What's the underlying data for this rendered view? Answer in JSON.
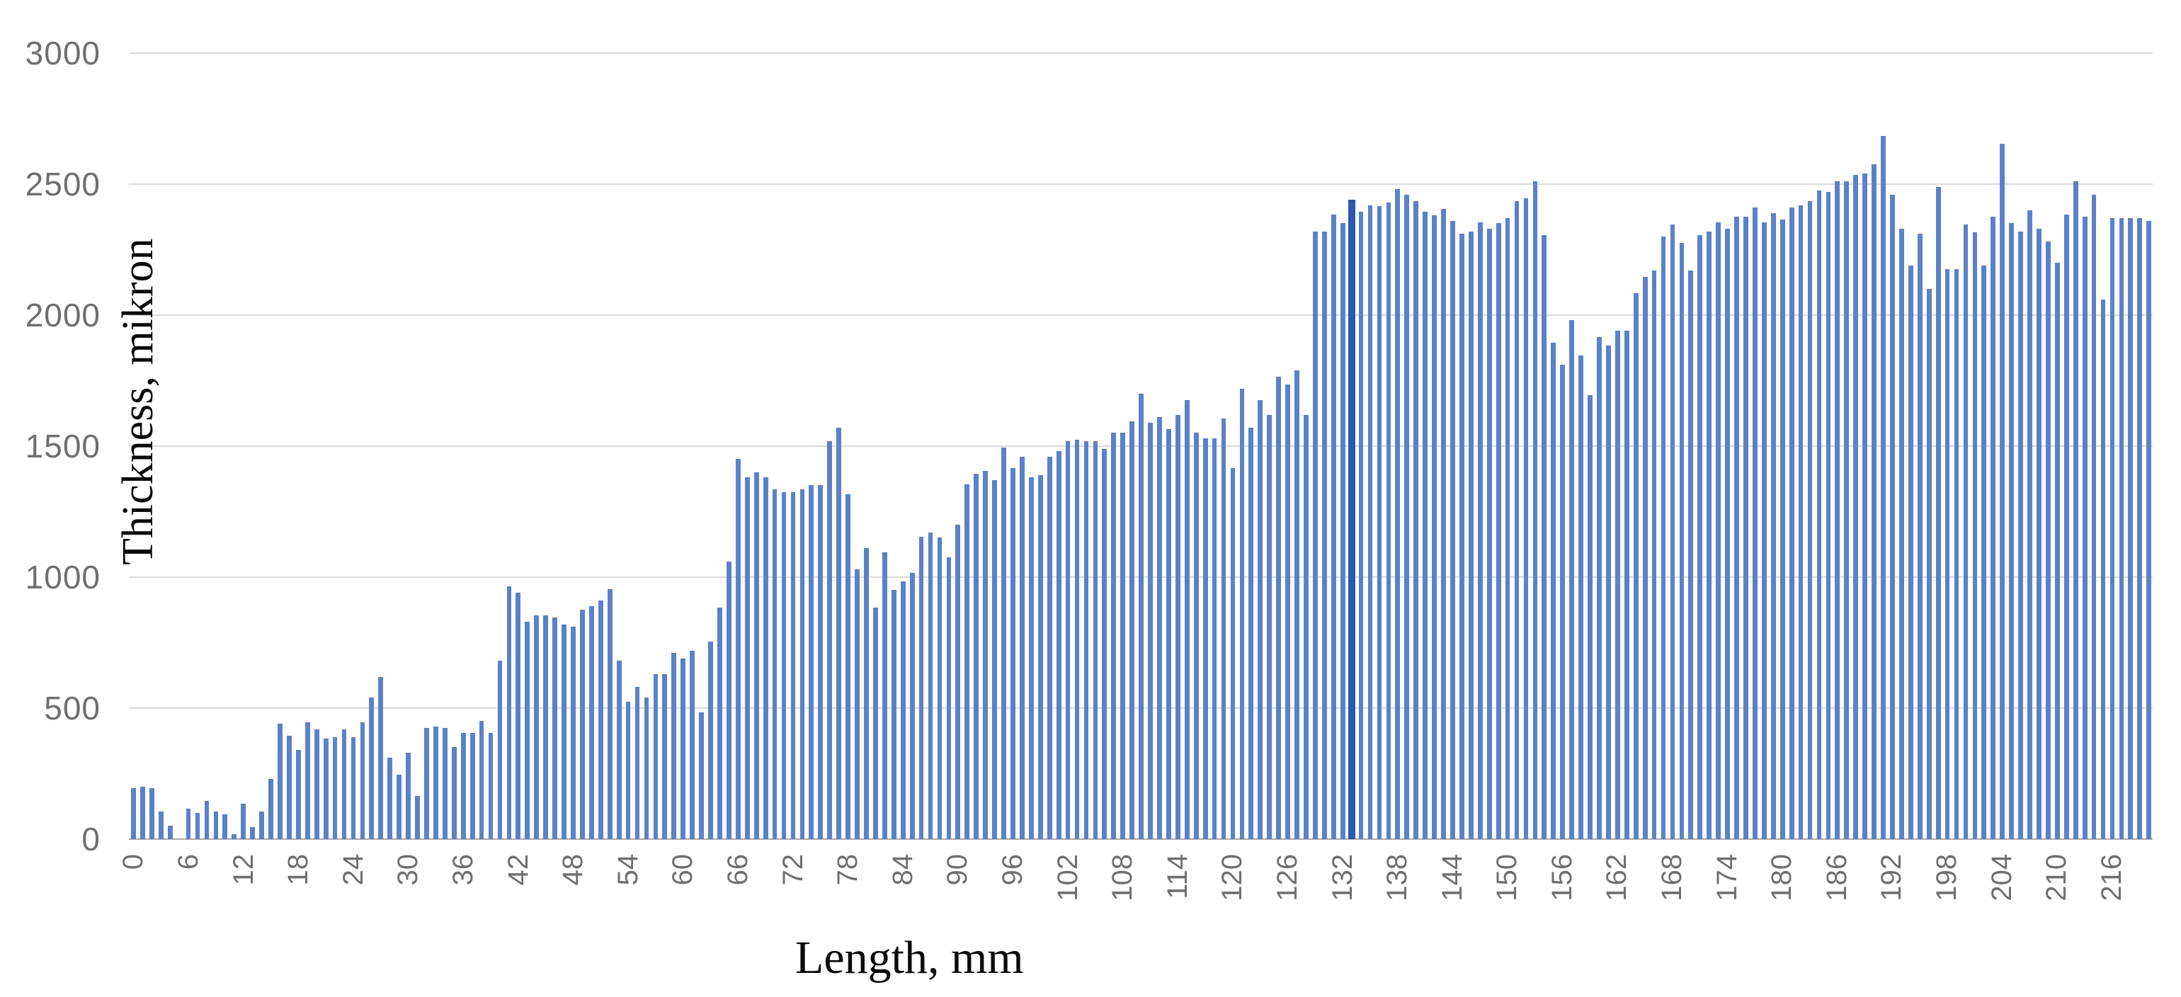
{
  "chart_data": {
    "type": "bar",
    "title": "",
    "xlabel": "Length, mm",
    "ylabel": "Thickness, mikron",
    "x_tick_step": 6,
    "x_tick_labels": [
      "0",
      "6",
      "12",
      "18",
      "24",
      "30",
      "36",
      "42",
      "48",
      "54",
      "60",
      "66",
      "72",
      "78",
      "84",
      "90",
      "96",
      "102",
      "108",
      "114",
      "120",
      "126",
      "132",
      "138",
      "144",
      "150",
      "156",
      "162",
      "168",
      "174",
      "180",
      "186",
      "192",
      "198",
      "204",
      "210",
      "216"
    ],
    "y_ticks": [
      0,
      500,
      1000,
      1500,
      2000,
      2500,
      3000
    ],
    "ylim": [
      0,
      3000
    ],
    "grid": true,
    "legend": "none",
    "bar_color": "#5b81c7",
    "dark_bar_color": "#2d59ab",
    "dark_bar_index": 133,
    "axis_text_color": "#6f6f6f",
    "gridline_color": "#d9d9d9",
    "values": [
      195,
      200,
      195,
      105,
      50,
      0,
      115,
      100,
      145,
      105,
      95,
      20,
      135,
      45,
      105,
      230,
      440,
      395,
      340,
      445,
      420,
      385,
      390,
      420,
      390,
      445,
      540,
      620,
      310,
      245,
      330,
      165,
      425,
      430,
      425,
      350,
      405,
      405,
      450,
      405,
      680,
      965,
      940,
      830,
      855,
      855,
      845,
      820,
      810,
      875,
      890,
      910,
      955,
      680,
      525,
      580,
      540,
      630,
      630,
      710,
      690,
      720,
      485,
      755,
      885,
      1060,
      1450,
      1380,
      1400,
      1380,
      1335,
      1325,
      1325,
      1335,
      1350,
      1350,
      1520,
      1570,
      1315,
      1030,
      1110,
      885,
      1095,
      950,
      985,
      1015,
      1155,
      1170,
      1150,
      1075,
      1200,
      1355,
      1395,
      1405,
      1370,
      1495,
      1415,
      1460,
      1380,
      1390,
      1460,
      1480,
      1520,
      1525,
      1520,
      1520,
      1490,
      1550,
      1550,
      1595,
      1700,
      1590,
      1610,
      1565,
      1620,
      1675,
      1550,
      1530,
      1530,
      1605,
      1415,
      1720,
      1570,
      1675,
      1620,
      1765,
      1735,
      1790,
      1620,
      2320,
      2320,
      2385,
      2350,
      2440,
      2395,
      2420,
      2415,
      2430,
      2480,
      2460,
      2435,
      2395,
      2380,
      2405,
      2360,
      2310,
      2320,
      2355,
      2330,
      2350,
      2370,
      2435,
      2445,
      2510,
      2305,
      1895,
      1810,
      1980,
      1845,
      1695,
      1915,
      1885,
      1940,
      1940,
      2085,
      2145,
      2170,
      2300,
      2345,
      2275,
      2170,
      2305,
      2320,
      2355,
      2330,
      2375,
      2375,
      2410,
      2355,
      2390,
      2365,
      2410,
      2420,
      2435,
      2475,
      2470,
      2510,
      2510,
      2535,
      2540,
      2575,
      2685,
      2460,
      2330,
      2190,
      2310,
      2100,
      2490,
      2175,
      2175,
      2345,
      2315,
      2190,
      2375,
      2655,
      2350,
      2320,
      2400,
      2330,
      2280,
      2200,
      2385,
      2510,
      2375,
      2460,
      2060,
      2370,
      2370,
      2370,
      2370,
      2360
    ]
  }
}
